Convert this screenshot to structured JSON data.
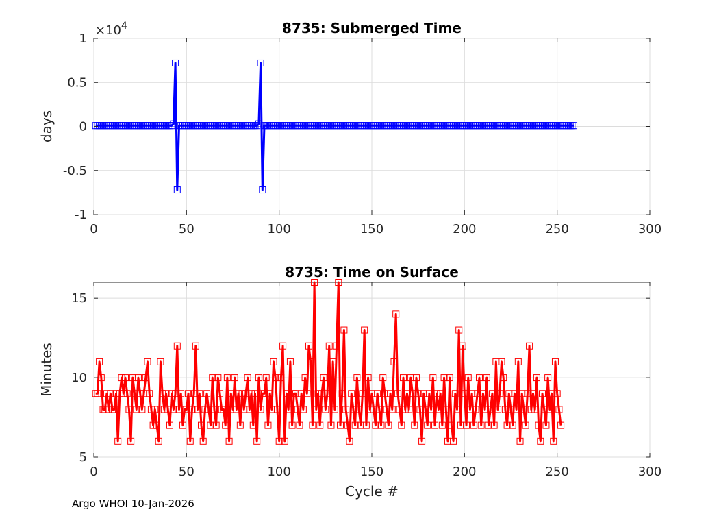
{
  "chart_data": [
    {
      "type": "line",
      "title": "8735: Submerged Time",
      "xlabel": "",
      "ylabel": "days",
      "xlim": [
        0,
        300
      ],
      "ylim": [
        -1,
        1
      ],
      "y_exponent_label": "×10",
      "y_exponent": "4",
      "xticks": [
        "0",
        "50",
        "100",
        "150",
        "200",
        "250",
        "300"
      ],
      "yticks": [
        "-1",
        "-0.5",
        "0",
        "0.5",
        "1"
      ],
      "grid": true,
      "color": "#0000ff",
      "marker": "square",
      "cycles_range": [
        1,
        259
      ],
      "baseline_value": 0.01,
      "spikes": [
        {
          "x": [
            43,
            44,
            45,
            46
          ],
          "y": [
            0.03,
            0.72,
            -0.72,
            0.01
          ]
        },
        {
          "x": [
            89,
            90,
            91,
            92
          ],
          "y": [
            0.03,
            0.72,
            -0.72,
            0.01
          ]
        }
      ]
    },
    {
      "type": "line",
      "title": "8735: Time on Surface",
      "xlabel": "Cycle #",
      "ylabel": "Minutes",
      "xlim": [
        0,
        300
      ],
      "ylim": [
        5,
        16
      ],
      "xticks": [
        "0",
        "50",
        "100",
        "150",
        "200",
        "250",
        "300"
      ],
      "yticks": [
        "5",
        "10",
        "15"
      ],
      "grid": true,
      "color": "#ff0000",
      "marker": "square",
      "x_start": 1,
      "values": [
        9,
        9,
        11,
        10,
        8,
        8,
        9,
        8,
        9,
        8,
        8,
        9,
        6,
        9,
        10,
        9,
        10,
        9,
        8,
        6,
        10,
        9,
        8,
        10,
        9,
        8,
        9,
        10,
        11,
        9,
        8,
        7,
        8,
        7,
        6,
        11,
        9,
        8,
        9,
        8,
        7,
        9,
        8,
        9,
        12,
        8,
        9,
        7,
        8,
        8,
        9,
        6,
        8,
        9,
        12,
        8,
        9,
        7,
        6,
        8,
        9,
        8,
        7,
        10,
        8,
        7,
        10,
        9,
        8,
        8,
        7,
        10,
        6,
        9,
        8,
        10,
        8,
        9,
        7,
        9,
        8,
        9,
        10,
        8,
        9,
        7,
        9,
        6,
        10,
        8,
        9,
        9,
        10,
        7,
        9,
        8,
        11,
        10,
        8,
        6,
        10,
        12,
        6,
        9,
        8,
        11,
        7,
        9,
        9,
        8,
        7,
        9,
        8,
        10,
        9,
        12,
        11,
        7,
        16,
        8,
        9,
        7,
        9,
        10,
        8,
        9,
        12,
        7,
        11,
        8,
        12,
        16,
        7,
        9,
        13,
        8,
        7,
        6,
        9,
        8,
        7,
        10,
        8,
        7,
        9,
        13,
        7,
        10,
        8,
        9,
        8,
        7,
        9,
        8,
        7,
        10,
        9,
        8,
        7,
        9,
        8,
        11,
        14,
        9,
        8,
        7,
        10,
        8,
        9,
        8,
        10,
        9,
        7,
        10,
        9,
        8,
        6,
        9,
        8,
        7,
        9,
        8,
        10,
        7,
        9,
        8,
        9,
        7,
        10,
        8,
        6,
        10,
        7,
        6,
        9,
        8,
        13,
        7,
        12,
        9,
        7,
        10,
        8,
        9,
        7,
        8,
        9,
        10,
        7,
        9,
        8,
        10,
        7,
        8,
        9,
        7,
        11,
        8,
        9,
        11,
        10,
        8,
        7,
        9,
        8,
        7,
        9,
        8,
        11,
        6,
        9,
        8,
        7,
        9,
        12,
        8,
        9,
        8,
        10,
        7,
        6,
        9,
        8,
        7,
        10,
        8,
        9,
        6,
        11,
        9,
        8,
        7
      ]
    }
  ],
  "footer": {
    "text": "Argo WHOI 10-Jan-2026"
  }
}
